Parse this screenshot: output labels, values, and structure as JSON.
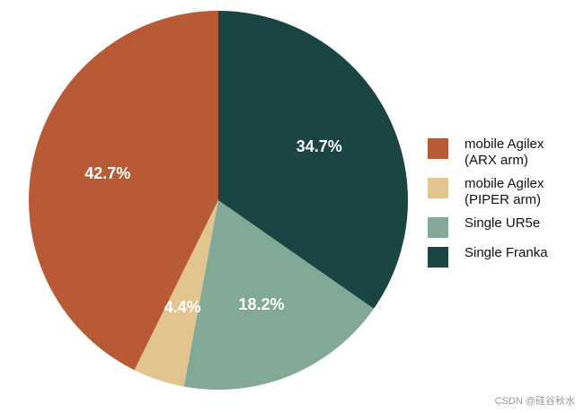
{
  "chart_data": {
    "type": "pie",
    "categories": [
      "mobile Agilex\n(ARX arm)",
      "mobile Agilex\n(PIPER arm)",
      "Single UR5e",
      "Single Franka"
    ],
    "values": [
      42.7,
      4.4,
      18.2,
      34.7
    ],
    "value_labels": [
      "42.7%",
      "4.4%",
      "18.2%",
      "34.7%"
    ],
    "colors": [
      "#b85a36",
      "#e2c48e",
      "#82a995",
      "#1b4444"
    ],
    "legend": "right",
    "watermark": "CSDN @硅谷秋水"
  }
}
